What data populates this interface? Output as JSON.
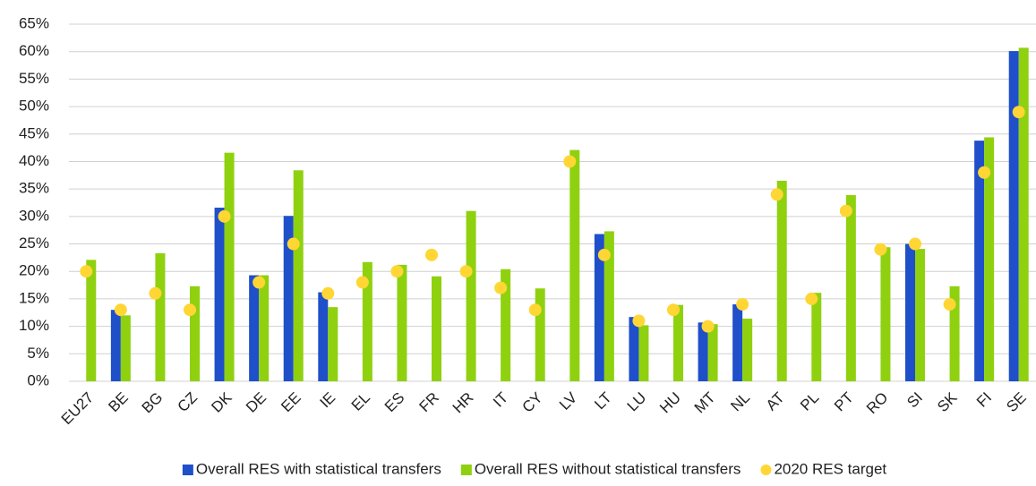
{
  "chart_data": {
    "type": "bar",
    "categories": [
      "EU27",
      "BE",
      "BG",
      "CZ",
      "DK",
      "DE",
      "EE",
      "IE",
      "EL",
      "ES",
      "FR",
      "HR",
      "IT",
      "CY",
      "LV",
      "LT",
      "LU",
      "HU",
      "MT",
      "NL",
      "AT",
      "PL",
      "PT",
      "RO",
      "SI",
      "SK",
      "FI",
      "SE"
    ],
    "series": [
      {
        "name": "Overall RES with statistical transfers",
        "color": "#1f4fc9",
        "type": "bar",
        "values": [
          null,
          13.0,
          null,
          null,
          31.6,
          19.3,
          30.1,
          16.2,
          null,
          null,
          null,
          null,
          null,
          null,
          null,
          26.8,
          11.7,
          null,
          10.7,
          14.0,
          null,
          null,
          null,
          null,
          25.0,
          null,
          43.8,
          60.1
        ]
      },
      {
        "name": "Overall RES without statistical transfers",
        "color": "#8fd10f",
        "type": "bar",
        "values": [
          22.1,
          12.0,
          23.3,
          17.3,
          41.6,
          19.3,
          38.4,
          13.5,
          21.7,
          21.2,
          19.1,
          31.0,
          20.4,
          16.9,
          42.1,
          27.3,
          10.2,
          13.9,
          10.4,
          11.4,
          36.5,
          16.1,
          33.9,
          24.4,
          24.1,
          17.3,
          44.4,
          60.7
        ]
      },
      {
        "name": "2020 RES target",
        "color": "#ffd633",
        "type": "scatter",
        "values": [
          20,
          13,
          16,
          13,
          30,
          18,
          25,
          16,
          18,
          20,
          23,
          20,
          17,
          13,
          40,
          23,
          11,
          13,
          10,
          14,
          34,
          15,
          31,
          24,
          25,
          14,
          38,
          49
        ]
      }
    ],
    "ylim": [
      0,
      65
    ],
    "yticks": [
      {
        "value": 0,
        "label": "0%"
      },
      {
        "value": 5,
        "label": "5%"
      },
      {
        "value": 10,
        "label": "10%"
      },
      {
        "value": 15,
        "label": "15%"
      },
      {
        "value": 20,
        "label": "20%"
      },
      {
        "value": 25,
        "label": "25%"
      },
      {
        "value": 30,
        "label": "30%"
      },
      {
        "value": 35,
        "label": "35%"
      },
      {
        "value": 40,
        "label": "40%"
      },
      {
        "value": 45,
        "label": "45%"
      },
      {
        "value": 50,
        "label": "50%"
      },
      {
        "value": 55,
        "label": "55%"
      },
      {
        "value": 60,
        "label": "60%"
      },
      {
        "value": 65,
        "label": "65%"
      }
    ],
    "grid": true,
    "legend": "bottom"
  }
}
